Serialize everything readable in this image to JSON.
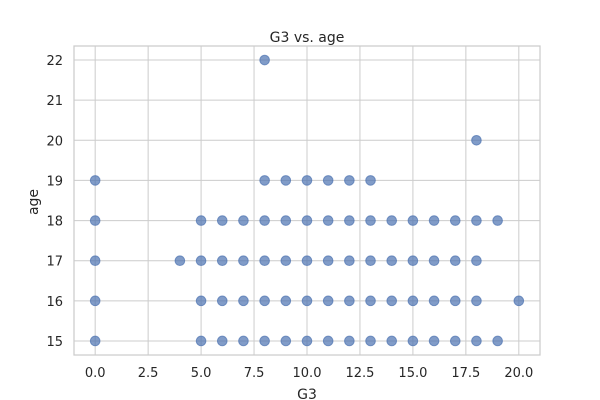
{
  "chart_data": {
    "type": "scatter",
    "title": "G3 vs. age",
    "xlabel": "G3",
    "ylabel": "age",
    "xlim": [
      -1.0,
      21.0
    ],
    "ylim": [
      14.65,
      22.35
    ],
    "x_ticks": [
      0.0,
      2.5,
      5.0,
      7.5,
      10.0,
      12.5,
      15.0,
      17.5,
      20.0
    ],
    "x_tick_labels": [
      "0.0",
      "2.5",
      "5.0",
      "7.5",
      "10.0",
      "12.5",
      "15.0",
      "17.5",
      "20.0"
    ],
    "y_ticks": [
      15,
      16,
      17,
      18,
      19,
      20,
      21,
      22
    ],
    "y_tick_labels": [
      "15",
      "16",
      "17",
      "18",
      "19",
      "20",
      "21",
      "22"
    ],
    "grid": true,
    "color": "#4c72b0",
    "series": [
      {
        "points": [
          [
            0,
            15
          ],
          [
            0,
            16
          ],
          [
            0,
            17
          ],
          [
            0,
            18
          ],
          [
            0,
            19
          ],
          [
            4,
            17
          ],
          [
            5,
            15
          ],
          [
            5,
            16
          ],
          [
            5,
            17
          ],
          [
            5,
            18
          ],
          [
            6,
            15
          ],
          [
            6,
            16
          ],
          [
            6,
            17
          ],
          [
            6,
            18
          ],
          [
            7,
            15
          ],
          [
            7,
            16
          ],
          [
            7,
            17
          ],
          [
            7,
            18
          ],
          [
            8,
            15
          ],
          [
            8,
            16
          ],
          [
            8,
            17
          ],
          [
            8,
            18
          ],
          [
            8,
            19
          ],
          [
            8,
            22
          ],
          [
            9,
            15
          ],
          [
            9,
            16
          ],
          [
            9,
            17
          ],
          [
            9,
            18
          ],
          [
            9,
            19
          ],
          [
            10,
            15
          ],
          [
            10,
            16
          ],
          [
            10,
            17
          ],
          [
            10,
            18
          ],
          [
            10,
            19
          ],
          [
            11,
            15
          ],
          [
            11,
            16
          ],
          [
            11,
            17
          ],
          [
            11,
            18
          ],
          [
            11,
            19
          ],
          [
            12,
            15
          ],
          [
            12,
            16
          ],
          [
            12,
            17
          ],
          [
            12,
            18
          ],
          [
            12,
            19
          ],
          [
            13,
            15
          ],
          [
            13,
            16
          ],
          [
            13,
            17
          ],
          [
            13,
            18
          ],
          [
            13,
            19
          ],
          [
            14,
            15
          ],
          [
            14,
            16
          ],
          [
            14,
            17
          ],
          [
            14,
            18
          ],
          [
            15,
            15
          ],
          [
            15,
            16
          ],
          [
            15,
            17
          ],
          [
            15,
            18
          ],
          [
            16,
            15
          ],
          [
            16,
            16
          ],
          [
            16,
            17
          ],
          [
            16,
            18
          ],
          [
            17,
            15
          ],
          [
            17,
            16
          ],
          [
            17,
            17
          ],
          [
            17,
            18
          ],
          [
            18,
            15
          ],
          [
            18,
            16
          ],
          [
            18,
            17
          ],
          [
            18,
            18
          ],
          [
            18,
            20
          ],
          [
            19,
            15
          ],
          [
            19,
            18
          ],
          [
            20,
            16
          ]
        ]
      }
    ]
  }
}
